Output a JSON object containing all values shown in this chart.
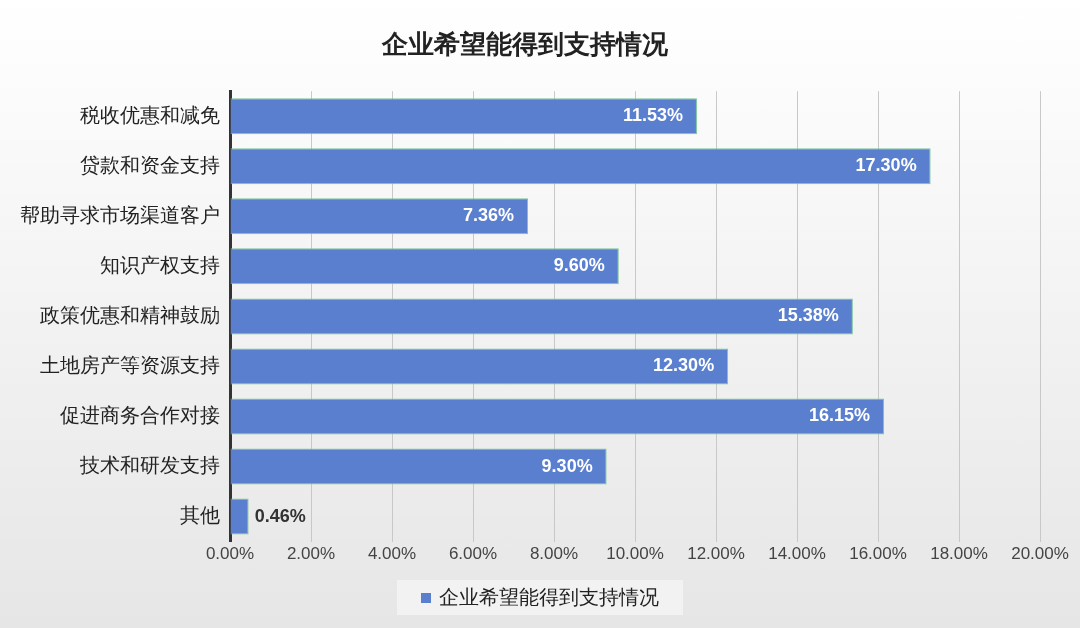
{
  "chart_data": {
    "type": "bar",
    "orientation": "horizontal",
    "title": "企业希望能得到支持情况",
    "categories": [
      "税收优惠和减免",
      "贷款和资金支持",
      "帮助寻求市场渠道客户",
      "知识产权支持",
      "政策优惠和精神鼓励",
      "土地房产等资源支持",
      "促进商务合作对接",
      "技术和研发支持",
      "其他"
    ],
    "series": [
      {
        "name": "企业希望能得到支持情况",
        "color": "#5b7fcf",
        "values": [
          11.53,
          17.3,
          7.36,
          9.6,
          15.38,
          12.3,
          16.15,
          9.3,
          0.46
        ],
        "value_labels": [
          "11.53%",
          "17.30%",
          "7.36%",
          "9.60%",
          "15.38%",
          "12.30%",
          "16.15%",
          "9.30%",
          "0.46%"
        ]
      }
    ],
    "xlim": [
      0,
      20
    ],
    "xticks": [
      {
        "value": 0,
        "label": "0.00%"
      },
      {
        "value": 2,
        "label": "2.00%"
      },
      {
        "value": 4,
        "label": "4.00%"
      },
      {
        "value": 6,
        "label": "6.00%"
      },
      {
        "value": 8,
        "label": "8.00%"
      },
      {
        "value": 10,
        "label": "10.00%"
      },
      {
        "value": 12,
        "label": "12.00%"
      },
      {
        "value": 14,
        "label": "14.00%"
      },
      {
        "value": 16,
        "label": "16.00%"
      },
      {
        "value": 18,
        "label": "18.00%"
      },
      {
        "value": 20,
        "label": "20.00%"
      }
    ],
    "grid": "x",
    "legend": "bottom"
  }
}
